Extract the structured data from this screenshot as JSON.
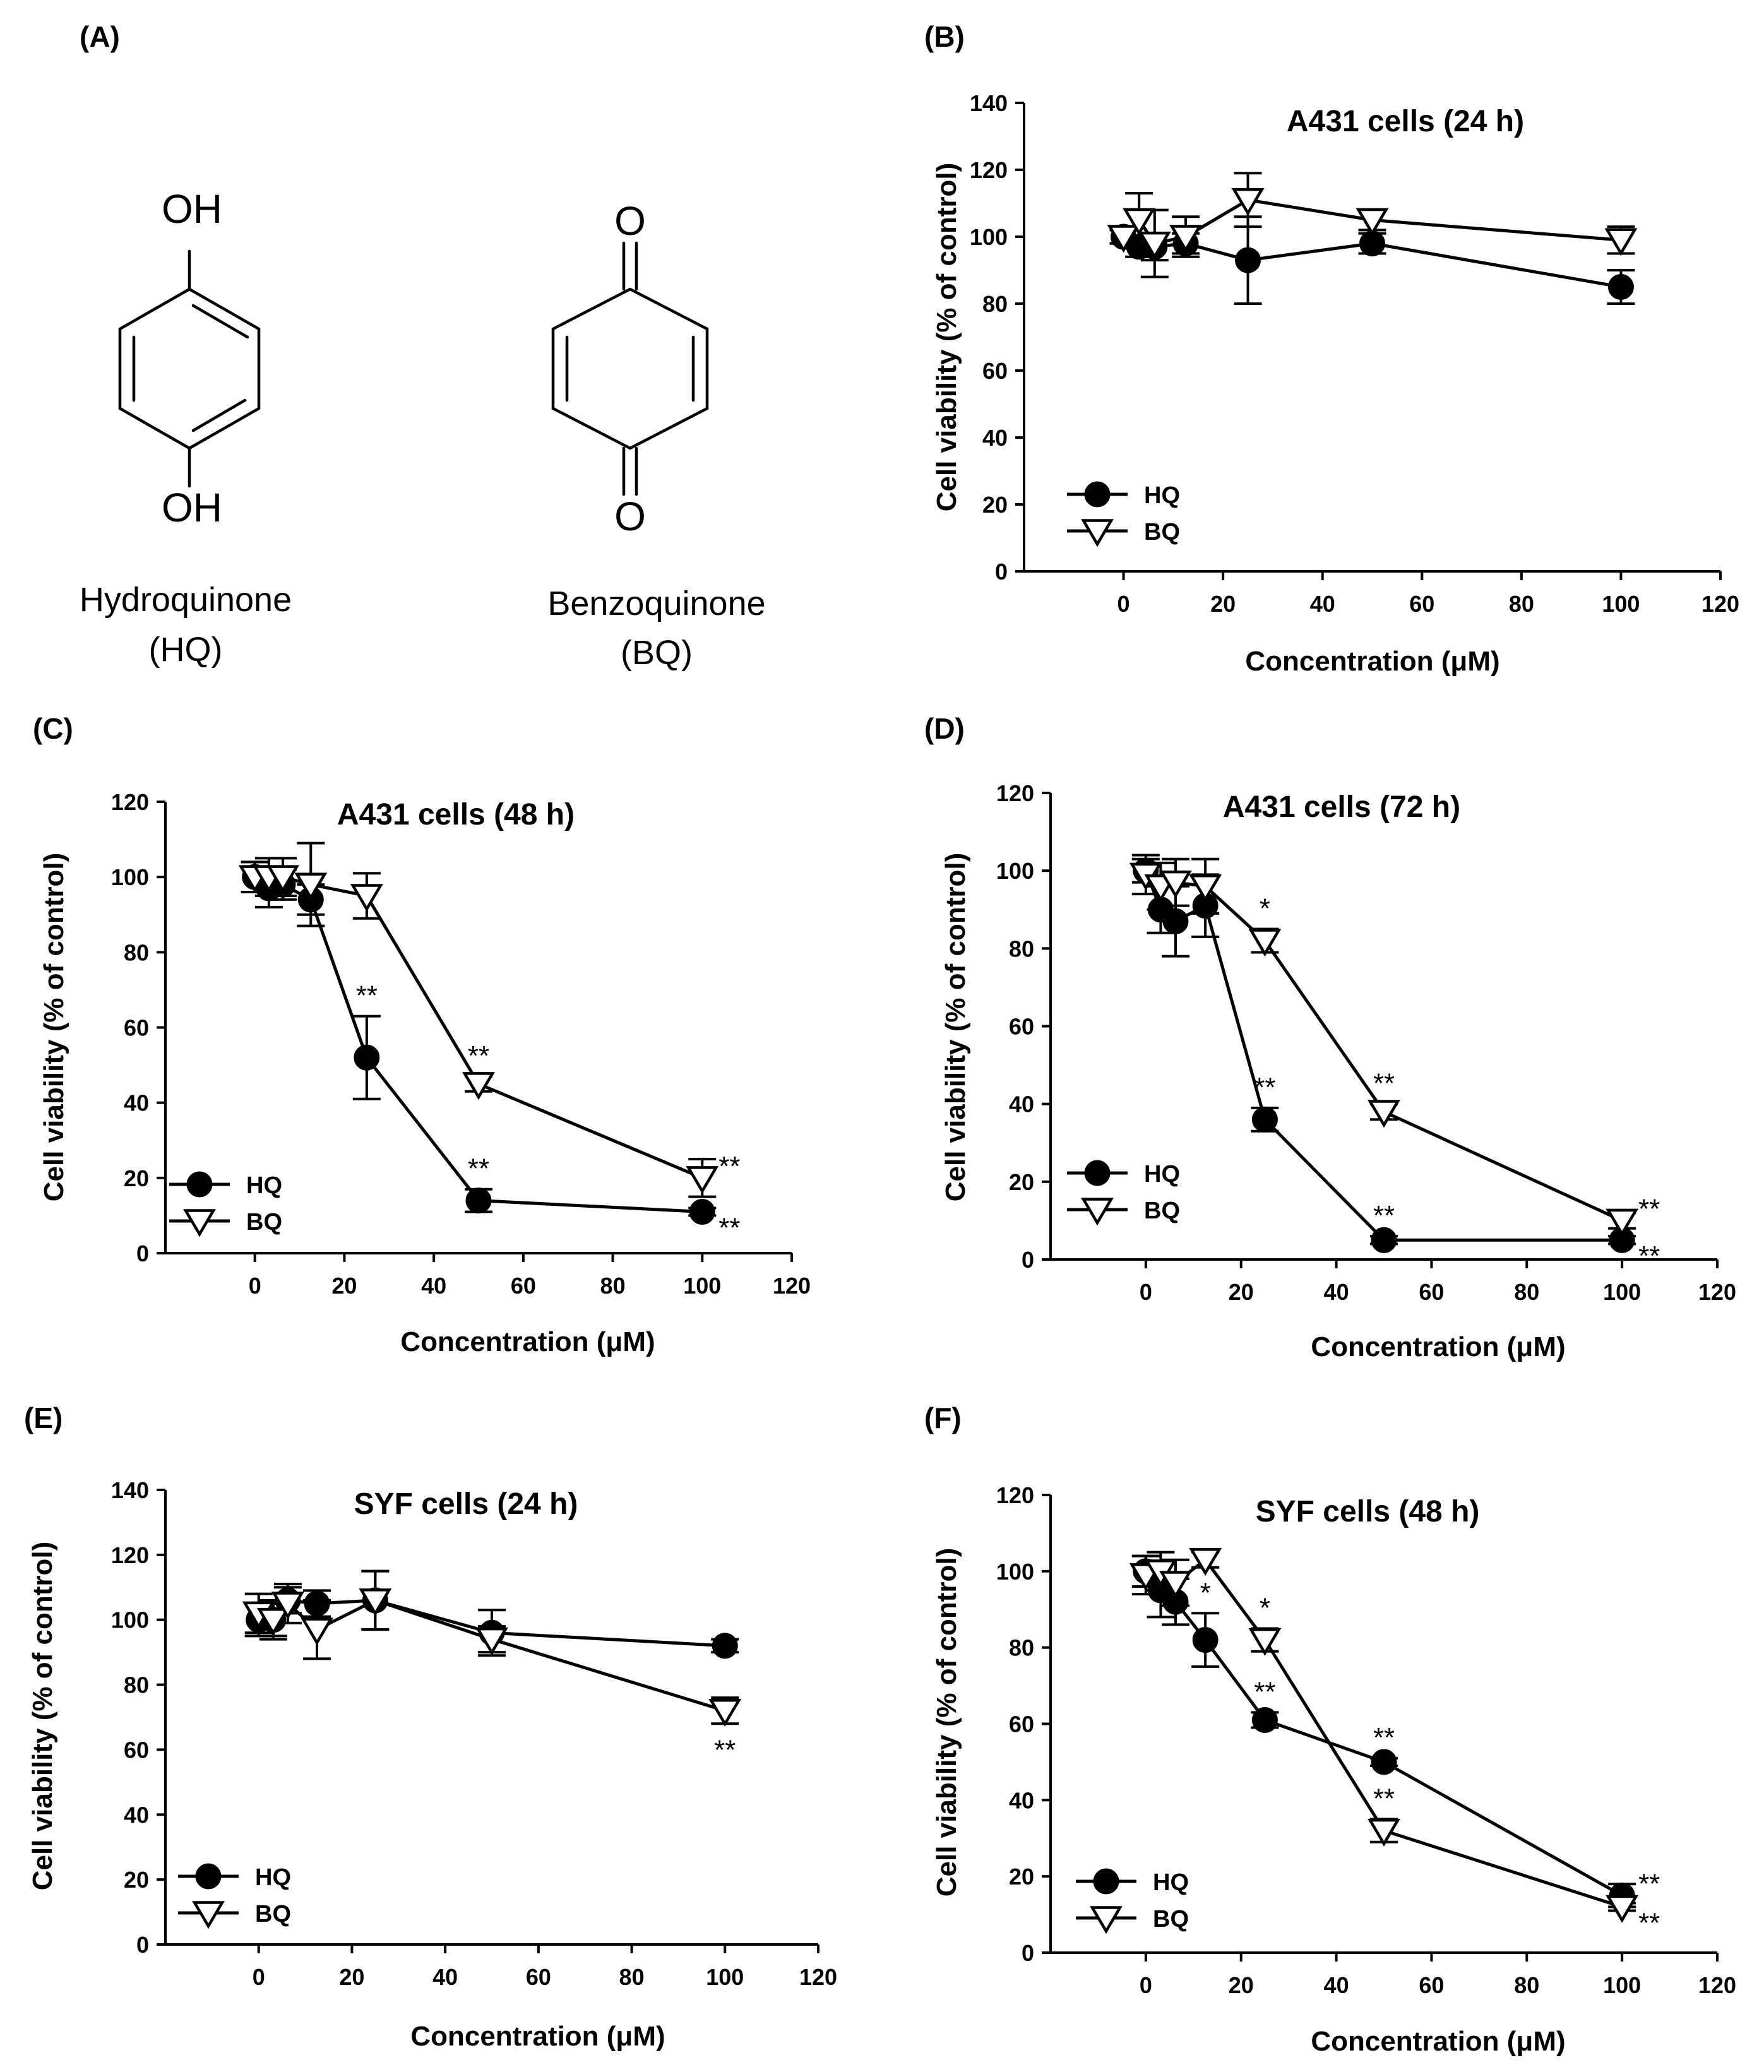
{
  "panel_a": {
    "letter": "(A)",
    "hq": {
      "oh_top": "OH",
      "oh_bottom": "OH",
      "name": "Hydroquinone",
      "abbr": "(HQ)"
    },
    "bq": {
      "o_top": "O",
      "o_bottom": "O",
      "name": "Benzoquinone",
      "abbr": "(BQ)"
    }
  },
  "chart_data": [
    {
      "letter": "(B)",
      "type": "line",
      "title": "A431 cells (24 h)",
      "xlabel": "Concentration (μM)",
      "ylabel": "Cell viability (% of control)",
      "xlim": [
        -20,
        120
      ],
      "ylim": [
        0,
        140
      ],
      "xticks": [
        0,
        20,
        40,
        60,
        80,
        100,
        120
      ],
      "yticks": [
        0,
        20,
        40,
        60,
        80,
        100,
        120,
        140
      ],
      "legend": [
        "HQ",
        "BQ"
      ],
      "series": [
        {
          "name": "HQ",
          "marker": "filled-circle",
          "x": [
            0,
            3.125,
            6.25,
            12.5,
            25,
            50,
            100
          ],
          "y": [
            100,
            97,
            97,
            98,
            93,
            98,
            85
          ],
          "err": [
            2,
            3,
            4,
            3,
            13,
            3,
            5
          ],
          "sig": [
            "",
            "",
            "",
            "",
            "",
            "",
            ""
          ]
        },
        {
          "name": "BQ",
          "marker": "open-triangle",
          "x": [
            0,
            3.125,
            6.25,
            12.5,
            25,
            50,
            100
          ],
          "y": [
            100,
            105,
            98,
            100,
            111,
            105,
            99
          ],
          "err": [
            2,
            8,
            10,
            6,
            8,
            3,
            4
          ],
          "sig": [
            "",
            "",
            "",
            "",
            "",
            "",
            ""
          ]
        }
      ]
    },
    {
      "letter": "(C)",
      "type": "line",
      "title": "A431 cells (48 h)",
      "xlabel": "Concentration (μM)",
      "ylabel": "Cell viability (% of control)",
      "xlim": [
        -20,
        120
      ],
      "ylim": [
        0,
        120
      ],
      "xticks": [
        0,
        20,
        40,
        60,
        80,
        100,
        120
      ],
      "yticks": [
        0,
        20,
        40,
        60,
        80,
        100,
        120
      ],
      "legend": [
        "HQ",
        "BQ"
      ],
      "series": [
        {
          "name": "HQ",
          "marker": "filled-circle",
          "x": [
            0,
            3.125,
            6.25,
            12.5,
            25,
            50,
            100
          ],
          "y": [
            100,
            97,
            98,
            94,
            52,
            14,
            11
          ],
          "err": [
            4,
            5,
            4,
            4,
            11,
            3,
            1
          ],
          "sig": [
            "",
            "",
            "",
            "",
            "**",
            "**",
            "**"
          ]
        },
        {
          "name": "BQ",
          "marker": "open-triangle",
          "x": [
            0,
            3.125,
            6.25,
            12.5,
            25,
            50,
            100
          ],
          "y": [
            100,
            100,
            100,
            98,
            95,
            45,
            20
          ],
          "err": [
            4,
            5,
            5,
            11,
            6,
            2,
            5
          ],
          "sig": [
            "",
            "",
            "",
            "",
            "",
            "**",
            "**"
          ]
        }
      ]
    },
    {
      "letter": "(D)",
      "type": "line",
      "title": "A431 cells (72 h)",
      "xlabel": "Concentration (μM)",
      "ylabel": "Cell viability (% of control)",
      "xlim": [
        -20,
        120
      ],
      "ylim": [
        0,
        120
      ],
      "xticks": [
        0,
        20,
        40,
        60,
        80,
        100,
        120
      ],
      "yticks": [
        0,
        20,
        40,
        60,
        80,
        100,
        120
      ],
      "legend": [
        "HQ",
        "BQ"
      ],
      "series": [
        {
          "name": "HQ",
          "marker": "filled-circle",
          "x": [
            0,
            3.125,
            6.25,
            12.5,
            25,
            50,
            100
          ],
          "y": [
            100,
            90,
            87,
            91,
            36,
            5,
            5
          ],
          "err": [
            3,
            6,
            9,
            8,
            3,
            1,
            1
          ],
          "sig": [
            "",
            "",
            "",
            "",
            "**",
            "**",
            "**"
          ]
        },
        {
          "name": "BQ",
          "marker": "open-triangle",
          "x": [
            0,
            3.125,
            6.25,
            12.5,
            25,
            50,
            100
          ],
          "y": [
            99,
            96,
            97,
            96,
            82,
            38,
            10
          ],
          "err": [
            5,
            6,
            6,
            7,
            3,
            2,
            2
          ],
          "sig": [
            "",
            "",
            "",
            "",
            "*",
            "**",
            "**"
          ]
        }
      ]
    },
    {
      "letter": "(E)",
      "type": "line",
      "title": "SYF cells (24 h)",
      "xlabel": "Concentration (μM)",
      "ylabel": "Cell viability (% of control)",
      "xlim": [
        -20,
        120
      ],
      "ylim": [
        0,
        140
      ],
      "xticks": [
        0,
        20,
        40,
        60,
        80,
        100,
        120
      ],
      "yticks": [
        0,
        20,
        40,
        60,
        80,
        100,
        120,
        140
      ],
      "legend": [
        "HQ",
        "BQ"
      ],
      "series": [
        {
          "name": "HQ",
          "marker": "filled-circle",
          "x": [
            0,
            3.125,
            6.25,
            12.5,
            25,
            50,
            100
          ],
          "y": [
            100,
            100,
            106,
            105,
            106,
            96,
            92
          ],
          "err": [
            5,
            5,
            4,
            4,
            9,
            7,
            2
          ],
          "sig": [
            "",
            "",
            "",
            "",
            "",
            "",
            ""
          ]
        },
        {
          "name": "BQ",
          "marker": "open-triangle",
          "x": [
            0,
            3.125,
            6.25,
            12.5,
            25,
            50,
            100
          ],
          "y": [
            102,
            100,
            105,
            97,
            106,
            94,
            72
          ],
          "err": [
            6,
            6,
            6,
            9,
            9,
            4,
            4
          ],
          "sig": [
            "",
            "",
            "",
            "",
            "",
            "",
            "**"
          ]
        }
      ]
    },
    {
      "letter": "(F)",
      "type": "line",
      "title": "SYF cells (48 h)",
      "xlabel": "Concentration (μM)",
      "ylabel": "Cell viability (% of control)",
      "xlim": [
        -20,
        120
      ],
      "ylim": [
        0,
        120
      ],
      "xticks": [
        0,
        20,
        40,
        60,
        80,
        100,
        120
      ],
      "yticks": [
        0,
        20,
        40,
        60,
        80,
        100,
        120
      ],
      "legend": [
        "HQ",
        "BQ"
      ],
      "series": [
        {
          "name": "HQ",
          "marker": "filled-circle",
          "x": [
            0,
            3.125,
            6.25,
            12.5,
            25,
            50,
            100
          ],
          "y": [
            100,
            95,
            92,
            82,
            61,
            50,
            15
          ],
          "err": [
            4,
            7,
            6,
            7,
            2,
            1,
            3
          ],
          "sig": [
            "",
            "",
            "",
            "*",
            "**",
            "**",
            "**"
          ]
        },
        {
          "name": "BQ",
          "marker": "open-triangle",
          "x": [
            0,
            3.125,
            6.25,
            12.5,
            25,
            50,
            100
          ],
          "y": [
            99,
            100,
            97,
            103,
            82,
            32,
            12
          ],
          "err": [
            5,
            5,
            6,
            2,
            3,
            3,
            1
          ],
          "sig": [
            "",
            "",
            "",
            "",
            "*",
            "**",
            "**"
          ]
        }
      ]
    }
  ]
}
